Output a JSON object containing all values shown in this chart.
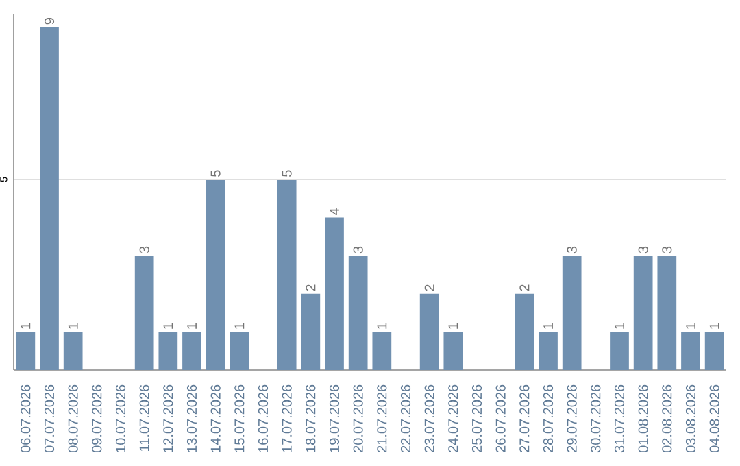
{
  "chart_data": {
    "type": "bar",
    "categories": [
      "06.07.2026",
      "07.07.2026",
      "08.07.2026",
      "09.07.2026",
      "10.07.2026",
      "11.07.2026",
      "12.07.2026",
      "13.07.2026",
      "14.07.2026",
      "15.07.2026",
      "16.07.2026",
      "17.07.2026",
      "18.07.2026",
      "19.07.2026",
      "20.07.2026",
      "21.07.2026",
      "22.07.2026",
      "23.07.2026",
      "24.07.2026",
      "25.07.2026",
      "26.07.2026",
      "27.07.2026",
      "28.07.2026",
      "29.07.2026",
      "30.07.2026",
      "31.07.2026",
      "01.08.2026",
      "02.08.2026",
      "03.08.2026",
      "04.08.2026"
    ],
    "values": [
      1,
      9,
      1,
      0,
      0,
      3,
      1,
      1,
      5,
      1,
      0,
      5,
      2,
      4,
      3,
      1,
      0,
      2,
      1,
      0,
      0,
      2,
      1,
      3,
      0,
      1,
      3,
      3,
      1,
      1
    ],
    "value_labels": [
      "1",
      "9",
      "1",
      null,
      null,
      "3",
      "1",
      "1",
      "5",
      "1",
      null,
      "5",
      "2",
      "4",
      "3",
      "1",
      null,
      "2",
      "1",
      null,
      null,
      "2",
      "1",
      "3",
      null,
      "1",
      "3",
      "3",
      "1",
      "1"
    ],
    "color": "#7090b0",
    "ylim": [
      0,
      9.35
    ],
    "yticks": [
      5
    ],
    "grid": "y"
  }
}
